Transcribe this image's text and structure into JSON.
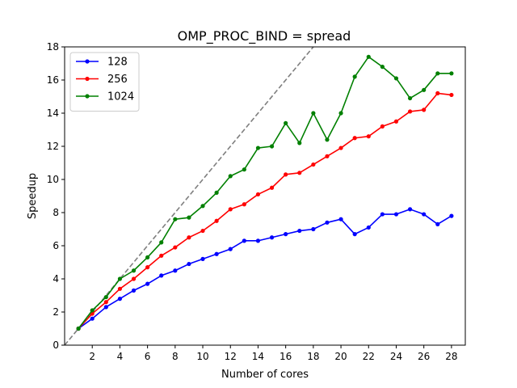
{
  "chart_data": {
    "type": "line",
    "title": "OMP_PROC_BIND = spread",
    "xlabel": "Number of cores",
    "ylabel": "Speedup",
    "xlim": [
      0,
      29
    ],
    "ylim": [
      0,
      18
    ],
    "xticks": [
      2,
      4,
      6,
      8,
      10,
      12,
      14,
      16,
      18,
      20,
      22,
      24,
      26,
      28
    ],
    "yticks": [
      0,
      2,
      4,
      6,
      8,
      10,
      12,
      14,
      16,
      18
    ],
    "grid": false,
    "legend_position": "top-left",
    "reference_line": {
      "x": [
        0,
        29
      ],
      "y": [
        0,
        29
      ],
      "style": "dashed",
      "color": "#7f7f7f"
    },
    "x": [
      1,
      2,
      3,
      4,
      5,
      6,
      7,
      8,
      9,
      10,
      11,
      12,
      13,
      14,
      15,
      16,
      17,
      18,
      19,
      20,
      21,
      22,
      23,
      24,
      25,
      26,
      27,
      28
    ],
    "series": [
      {
        "name": "128",
        "color": "#0000ff",
        "values": [
          1.0,
          1.6,
          2.3,
          2.8,
          3.3,
          3.7,
          4.2,
          4.5,
          4.9,
          5.2,
          5.5,
          5.8,
          6.3,
          6.3,
          6.5,
          6.7,
          6.9,
          7.0,
          7.4,
          7.6,
          6.7,
          7.1,
          7.9,
          7.9,
          8.2,
          7.9,
          7.3,
          7.8
        ]
      },
      {
        "name": "256",
        "color": "#ff0000",
        "values": [
          1.0,
          1.9,
          2.6,
          3.4,
          4.0,
          4.7,
          5.4,
          5.9,
          6.5,
          6.9,
          7.5,
          8.2,
          8.5,
          9.1,
          9.5,
          10.3,
          10.4,
          10.9,
          11.4,
          11.9,
          12.5,
          12.6,
          13.2,
          13.5,
          14.1,
          14.2,
          15.2,
          15.1
        ]
      },
      {
        "name": "1024",
        "color": "#008000",
        "values": [
          1.0,
          2.1,
          2.9,
          4.0,
          4.5,
          5.3,
          6.2,
          7.6,
          7.7,
          8.4,
          9.2,
          10.2,
          10.6,
          11.9,
          12.0,
          13.4,
          12.2,
          14.0,
          12.4,
          14.0,
          16.2,
          17.4,
          16.8,
          16.1,
          14.9,
          15.4,
          16.4,
          16.4
        ]
      }
    ]
  }
}
